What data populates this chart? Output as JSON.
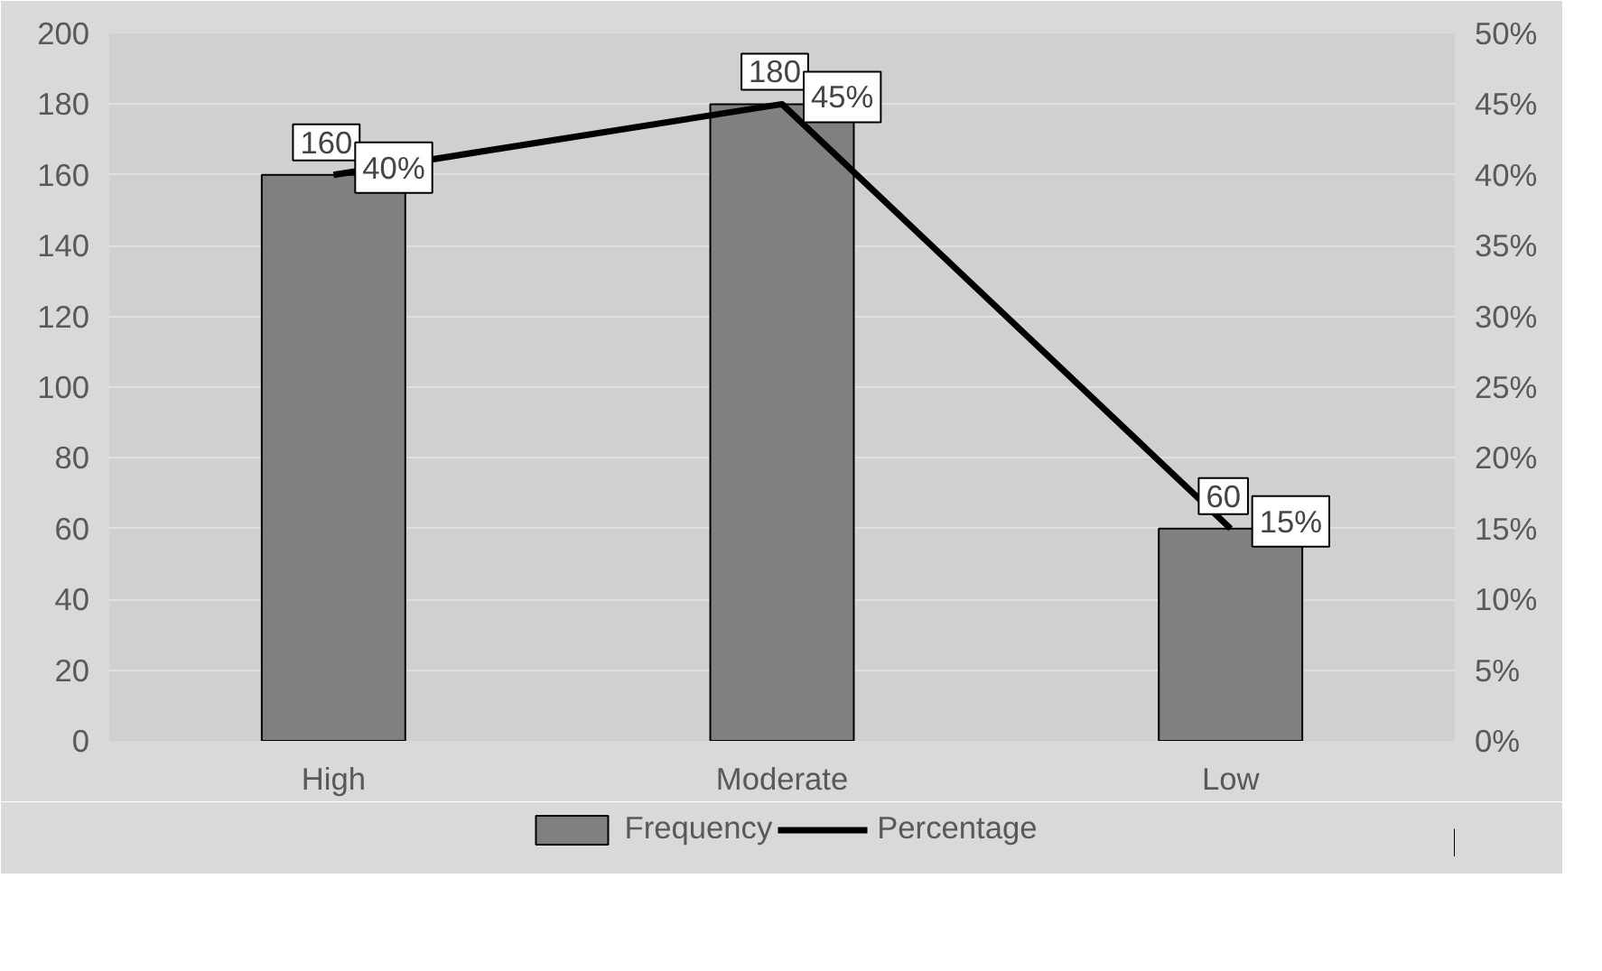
{
  "chart_data": {
    "type": "bar",
    "categories": [
      "High",
      "Moderate",
      "Low"
    ],
    "series": [
      {
        "name": "Frequency",
        "color": "#808080",
        "values": [
          160,
          180,
          60
        ],
        "value_labels": [
          "160",
          "180",
          "60"
        ]
      },
      {
        "name": "Percentage",
        "type": "line",
        "axis": "y2",
        "color": "#000000",
        "values": [
          40,
          45,
          15
        ],
        "value_labels": [
          "40%",
          "45%",
          "15%"
        ]
      }
    ],
    "ylim": [
      0,
      200
    ],
    "yticks": [
      0,
      20,
      40,
      60,
      80,
      100,
      120,
      140,
      160,
      180,
      200
    ],
    "y2lim": [
      0,
      50
    ],
    "y2ticks": [
      {
        "value": 0,
        "label": "0%"
      },
      {
        "value": 5,
        "label": "5%"
      },
      {
        "value": 10,
        "label": "10%"
      },
      {
        "value": 15,
        "label": "15%"
      },
      {
        "value": 20,
        "label": "20%"
      },
      {
        "value": 25,
        "label": "25%"
      },
      {
        "value": 30,
        "label": "30%"
      },
      {
        "value": 35,
        "label": "35%"
      },
      {
        "value": 40,
        "label": "40%"
      },
      {
        "value": 45,
        "label": "45%"
      },
      {
        "value": 50,
        "label": "50%"
      }
    ],
    "grid": "y",
    "legend": "bottom",
    "marker": "none",
    "line_style": "solid"
  }
}
